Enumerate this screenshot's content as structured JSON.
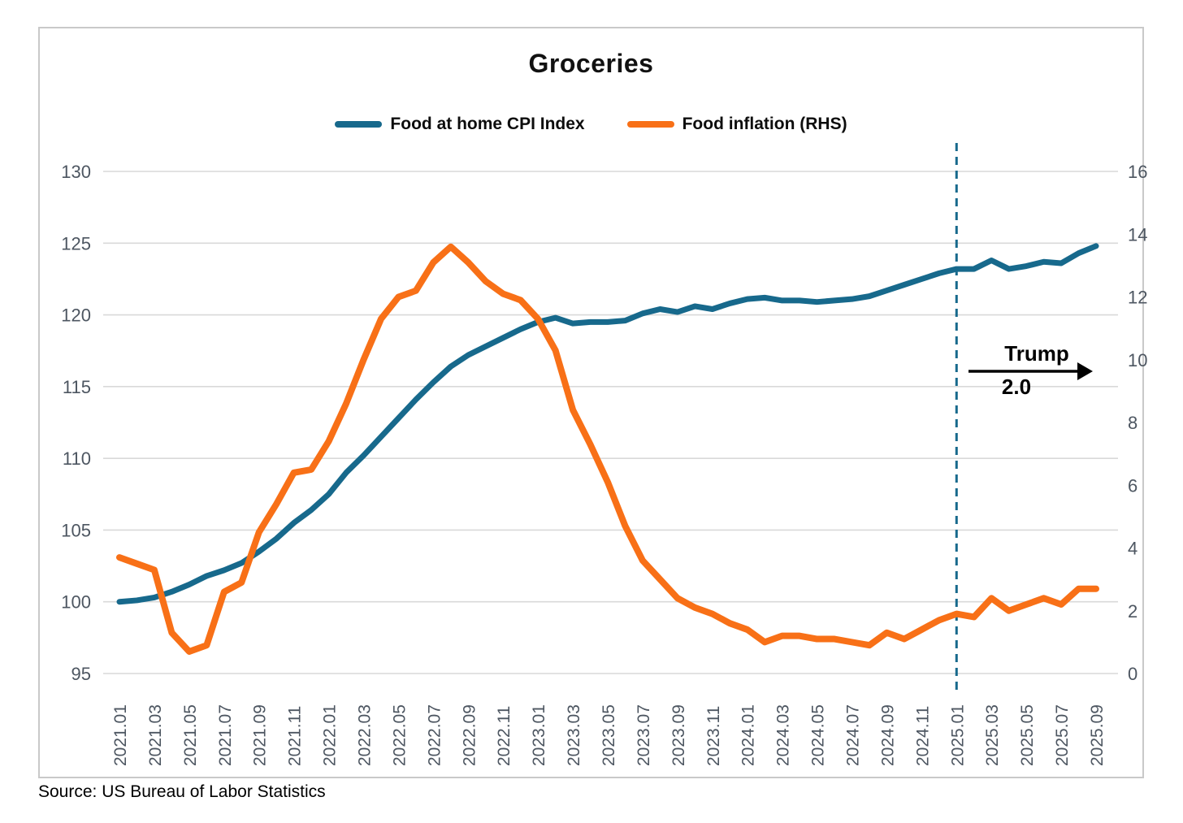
{
  "page": {
    "title": "Groceries",
    "source": "Source: US Bureau of Labor Statistics"
  },
  "legend": [
    {
      "label": "Food at home CPI Index",
      "color": "#17698C"
    },
    {
      "label": "Food inflation (RHS)",
      "color": "#F87017"
    }
  ],
  "annotation": {
    "line1": "Trump",
    "line2": "2.0",
    "x_month": "2025.01"
  },
  "colors": {
    "gridline": "#D9D9D9",
    "axis_label": "#4d5661",
    "frame": "#c9c9c9",
    "dashed_line": "#17698C",
    "arrow": "#000000",
    "background": "#ffffff"
  },
  "chart_data": {
    "type": "line",
    "title": "Groceries",
    "xlabel": "",
    "ylabel": "",
    "grid": true,
    "legend_position": "top",
    "x_label_every": 2,
    "categories": [
      "2021.01",
      "2021.02",
      "2021.03",
      "2021.04",
      "2021.05",
      "2021.06",
      "2021.07",
      "2021.08",
      "2021.09",
      "2021.10",
      "2021.11",
      "2021.12",
      "2022.01",
      "2022.02",
      "2022.03",
      "2022.04",
      "2022.05",
      "2022.06",
      "2022.07",
      "2022.08",
      "2022.09",
      "2022.10",
      "2022.11",
      "2022.12",
      "2023.01",
      "2023.02",
      "2023.03",
      "2023.04",
      "2023.05",
      "2023.06",
      "2023.07",
      "2023.08",
      "2023.09",
      "2023.10",
      "2023.11",
      "2023.12",
      "2024.01",
      "2024.02",
      "2024.03",
      "2024.04",
      "2024.05",
      "2024.06",
      "2024.07",
      "2024.08",
      "2024.09",
      "2024.10",
      "2024.11",
      "2024.12",
      "2025.01",
      "2025.02",
      "2025.03",
      "2025.04",
      "2025.05",
      "2025.06",
      "2025.07",
      "2025.08",
      "2025.09"
    ],
    "left_axis": {
      "min": 95,
      "max": 130,
      "step": 5,
      "ticks": [
        95,
        100,
        105,
        110,
        115,
        120,
        125,
        130
      ]
    },
    "right_axis": {
      "min": 0,
      "max": 16,
      "step": 2,
      "ticks": [
        0,
        2,
        4,
        6,
        8,
        10,
        12,
        14,
        16
      ]
    },
    "series": [
      {
        "name": "Food at home CPI Index",
        "axis": "left",
        "color": "#17698C",
        "width": 7,
        "values": [
          100.0,
          100.1,
          100.3,
          100.7,
          101.2,
          101.8,
          102.2,
          102.7,
          103.5,
          104.4,
          105.5,
          106.4,
          107.5,
          109.0,
          110.2,
          111.5,
          112.8,
          114.1,
          115.3,
          116.4,
          117.2,
          117.8,
          118.4,
          119.0,
          119.5,
          119.8,
          119.4,
          119.5,
          119.5,
          119.6,
          120.1,
          120.4,
          120.2,
          120.6,
          120.4,
          120.8,
          121.1,
          121.2,
          121.0,
          121.0,
          120.9,
          121.0,
          121.1,
          121.3,
          121.7,
          122.1,
          122.5,
          122.9,
          123.2,
          123.2,
          123.8,
          123.2,
          123.4,
          123.7,
          123.6,
          124.3,
          124.8
        ]
      },
      {
        "name": "Food inflation (RHS)",
        "axis": "right",
        "color": "#F87017",
        "width": 8,
        "values": [
          3.7,
          3.5,
          3.3,
          1.3,
          0.7,
          0.9,
          2.6,
          2.9,
          4.5,
          5.4,
          6.4,
          6.5,
          7.4,
          8.6,
          10.0,
          11.3,
          12.0,
          12.2,
          13.1,
          13.6,
          13.1,
          12.5,
          12.1,
          11.9,
          11.3,
          10.3,
          8.4,
          7.3,
          6.1,
          4.7,
          3.6,
          3.0,
          2.4,
          2.1,
          1.9,
          1.6,
          1.4,
          1.0,
          1.2,
          1.2,
          1.1,
          1.1,
          1.0,
          0.9,
          1.3,
          1.1,
          1.4,
          1.7,
          1.9,
          1.8,
          2.4,
          2.0,
          2.2,
          2.4,
          2.2,
          2.7,
          2.7
        ]
      }
    ],
    "annotations": [
      {
        "type": "vline-dashed",
        "at": "2025.01"
      },
      {
        "type": "arrow-right-with-text",
        "text": "Trump 2.0"
      }
    ]
  }
}
